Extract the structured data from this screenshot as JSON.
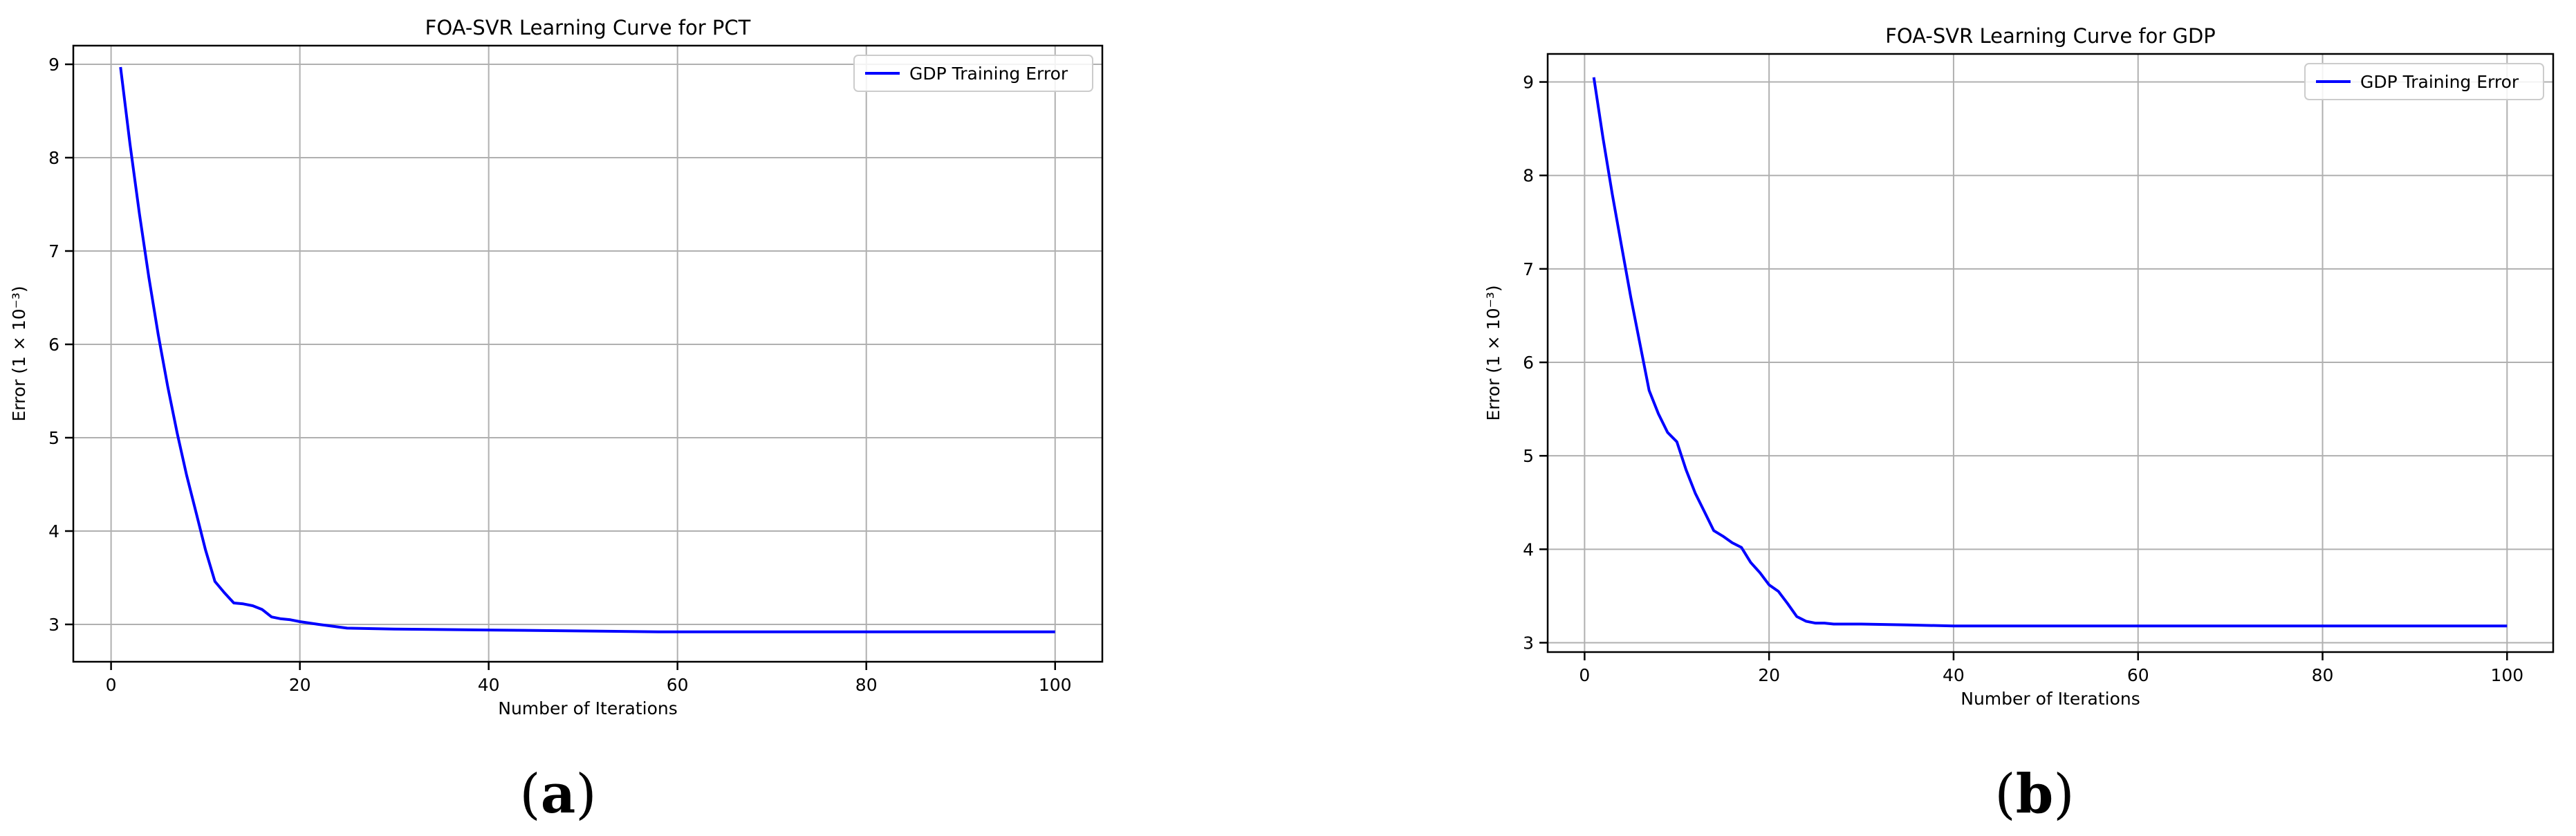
{
  "chart_data": [
    {
      "type": "line",
      "panel_label": "(a)",
      "panel_letter": "a",
      "title": "FOA-SVR Learning Curve for PCT",
      "xlabel": "Number of Iterations",
      "ylabel": "Error (1 × 10⁻³)",
      "xlim": [
        -4,
        105
      ],
      "ylim": [
        2.6,
        9.2
      ],
      "xticks": [
        0,
        20,
        40,
        60,
        80,
        100
      ],
      "yticks": [
        3,
        4,
        5,
        6,
        7,
        8,
        9
      ],
      "grid": true,
      "legend_position": "top-right",
      "series": [
        {
          "name": "GDP Training Error",
          "color": "#0000ff",
          "x": [
            1,
            2,
            3,
            4,
            5,
            6,
            7,
            8,
            9,
            10,
            11,
            12,
            13,
            14,
            15,
            16,
            17,
            18,
            19,
            20,
            22,
            25,
            30,
            40,
            50,
            58,
            60,
            70,
            80,
            90,
            100
          ],
          "y": [
            8.97,
            8.15,
            7.4,
            6.72,
            6.1,
            5.55,
            5.05,
            4.6,
            4.2,
            3.8,
            3.46,
            3.34,
            3.23,
            3.22,
            3.2,
            3.16,
            3.08,
            3.06,
            3.05,
            3.03,
            3.0,
            2.96,
            2.95,
            2.94,
            2.93,
            2.92,
            2.92,
            2.92,
            2.92,
            2.92,
            2.92
          ]
        }
      ]
    },
    {
      "type": "line",
      "panel_label": "(b)",
      "panel_letter": "b",
      "title": "FOA-SVR Learning Curve for GDP",
      "xlabel": "Number of Iterations",
      "ylabel": "Error (1 × 10⁻³)",
      "xlim": [
        -4,
        105
      ],
      "ylim": [
        2.9,
        9.3
      ],
      "xticks": [
        0,
        20,
        40,
        60,
        80,
        100
      ],
      "yticks": [
        3,
        4,
        5,
        6,
        7,
        8,
        9
      ],
      "grid": true,
      "legend_position": "top-right",
      "series": [
        {
          "name": "GDP Training Error",
          "color": "#0000ff",
          "x": [
            1,
            2,
            3,
            4,
            5,
            6,
            7,
            8,
            9,
            10,
            11,
            12,
            13,
            14,
            15,
            16,
            17,
            18,
            19,
            20,
            21,
            22,
            23,
            24,
            25,
            26,
            27,
            28,
            30,
            35,
            40,
            50,
            60,
            70,
            80,
            90,
            100
          ],
          "y": [
            9.05,
            8.4,
            7.8,
            7.25,
            6.7,
            6.2,
            5.7,
            5.45,
            5.25,
            5.15,
            4.85,
            4.6,
            4.4,
            4.2,
            4.14,
            4.07,
            4.02,
            3.86,
            3.75,
            3.62,
            3.55,
            3.42,
            3.28,
            3.23,
            3.21,
            3.21,
            3.2,
            3.2,
            3.2,
            3.19,
            3.18,
            3.18,
            3.18,
            3.18,
            3.18,
            3.18,
            3.18
          ]
        }
      ]
    }
  ]
}
